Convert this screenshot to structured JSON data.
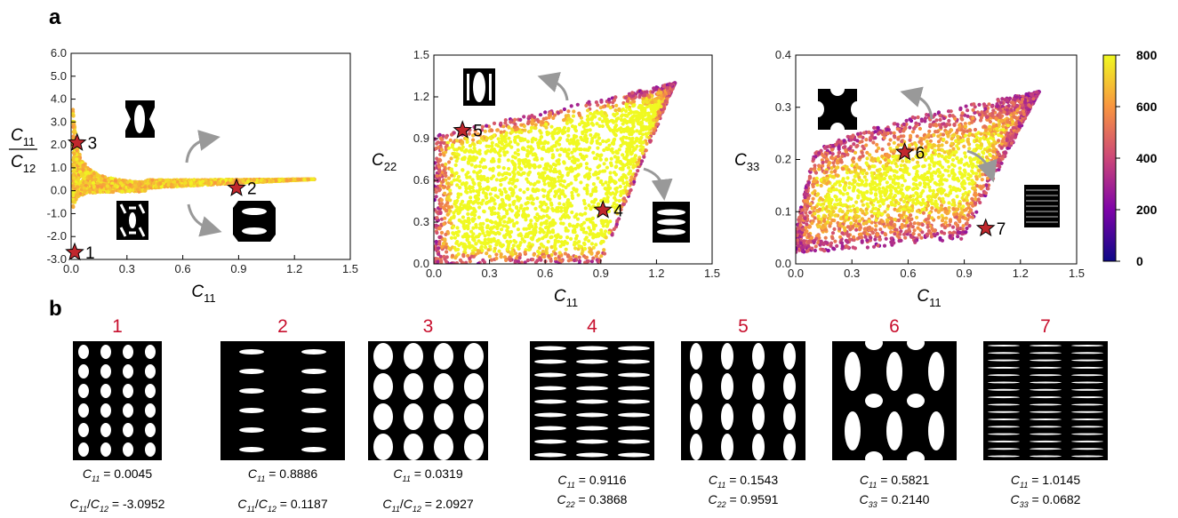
{
  "labels": {
    "panel_a": "a",
    "panel_b": "b"
  },
  "chart_data": [
    {
      "type": "scatter",
      "xlabel": "C11",
      "ylabel": "C11/C12",
      "xlim": [
        0,
        1.5
      ],
      "ylim": [
        -3.0,
        6.0
      ],
      "xticks": [
        "0.0",
        "0.3",
        "0.6",
        "0.9",
        "1.2",
        "1.5"
      ],
      "yticks": [
        "-3.0",
        "-2.0",
        "-1.0",
        "0.0",
        "1.0",
        "2.0",
        "3.0",
        "4.0",
        "5.0",
        "6.0"
      ],
      "colorbar": {
        "range": [
          0,
          800
        ],
        "ticks": [
          "0",
          "200",
          "400",
          "600",
          "800"
        ]
      },
      "highlighted_points": [
        {
          "label": "1",
          "x": 0.0045,
          "y": -3.0952
        },
        {
          "label": "2",
          "x": 0.8886,
          "y": 0.1187
        },
        {
          "label": "3",
          "x": 0.0319,
          "y": 2.0927
        }
      ]
    },
    {
      "type": "scatter",
      "xlabel": "C11",
      "ylabel": "C22",
      "xlim": [
        0,
        1.5
      ],
      "ylim": [
        0,
        1.5
      ],
      "xticks": [
        "0.0",
        "0.3",
        "0.6",
        "0.9",
        "1.2",
        "1.5"
      ],
      "yticks": [
        "0.0",
        "0.3",
        "0.6",
        "0.9",
        "1.2",
        "1.5"
      ],
      "highlighted_points": [
        {
          "label": "4",
          "x": 0.9116,
          "y": 0.3868
        },
        {
          "label": "5",
          "x": 0.1543,
          "y": 0.9591
        }
      ]
    },
    {
      "type": "scatter",
      "xlabel": "C11",
      "ylabel": "C33",
      "xlim": [
        0,
        1.5
      ],
      "ylim": [
        0,
        0.4
      ],
      "xticks": [
        "0.0",
        "0.3",
        "0.6",
        "0.9",
        "1.2",
        "1.5"
      ],
      "yticks": [
        "0.0",
        "0.1",
        "0.2",
        "0.3",
        "0.4"
      ],
      "highlighted_points": [
        {
          "label": "6",
          "x": 0.5821,
          "y": 0.214
        },
        {
          "label": "7",
          "x": 1.0145,
          "y": 0.0682
        }
      ]
    }
  ],
  "designs": [
    {
      "number": "1",
      "line1": {
        "key": "C",
        "sub": "11",
        "sep": " = ",
        "value": "0.0045"
      },
      "line2": {
        "key": "C",
        "sub": "11",
        "key2": "C",
        "sub2": "12",
        "sep": " = ",
        "value": "-3.0952"
      }
    },
    {
      "number": "2",
      "line1": {
        "key": "C",
        "sub": "11",
        "sep": " = ",
        "value": "0.8886"
      },
      "line2": {
        "key": "C",
        "sub": "11",
        "key2": "C",
        "sub2": "12",
        "sep": " = ",
        "value": "0.1187"
      }
    },
    {
      "number": "3",
      "line1": {
        "key": "C",
        "sub": "11",
        "sep": " = ",
        "value": "0.0319"
      },
      "line2": {
        "key": "C",
        "sub": "11",
        "key2": "C",
        "sub2": "12",
        "sep": " = ",
        "value": "2.0927"
      }
    },
    {
      "number": "4",
      "line1": {
        "key": "C",
        "sub": "11",
        "sep": " = ",
        "value": "0.9116"
      },
      "line2": {
        "key": "C",
        "sub": "22",
        "sep": " = ",
        "value": "0.3868"
      }
    },
    {
      "number": "5",
      "line1": {
        "key": "C",
        "sub": "11",
        "sep": " = ",
        "value": "0.1543"
      },
      "line2": {
        "key": "C",
        "sub": "22",
        "sep": " = ",
        "value": "0.9591"
      }
    },
    {
      "number": "6",
      "line1": {
        "key": "C",
        "sub": "11",
        "sep": " = ",
        "value": "0.5821"
      },
      "line2": {
        "key": "C",
        "sub": "33",
        "sep": " = ",
        "value": "0.2140"
      }
    },
    {
      "number": "7",
      "line1": {
        "key": "C",
        "sub": "11",
        "sep": " = ",
        "value": "1.0145"
      },
      "line2": {
        "key": "C",
        "sub": "33",
        "sep": " = ",
        "value": "0.0682"
      }
    }
  ]
}
